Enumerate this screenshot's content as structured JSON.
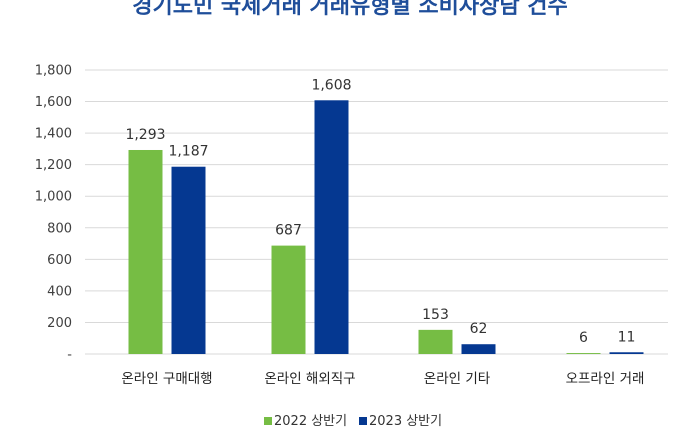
{
  "chart_data": {
    "type": "bar",
    "title": "경기도민 국제거래 거래유형별 소비자상담 건수",
    "categories": [
      "온라인 구매대행",
      "온라인 해외직구",
      "온라인 기타",
      "오프라인 거래"
    ],
    "series": [
      {
        "name": "2022 상반기",
        "values": [
          1293,
          687,
          153,
          6
        ],
        "labels": [
          "1,293",
          "687",
          "153",
          "6"
        ]
      },
      {
        "name": "2023 상반기",
        "values": [
          1187,
          1608,
          62,
          11
        ],
        "labels": [
          "1,187",
          "1,608",
          "62",
          "11"
        ]
      }
    ],
    "ylim": [
      0,
      1800
    ],
    "yticks": [
      0,
      200,
      400,
      600,
      800,
      1000,
      1200,
      1400,
      1600,
      1800
    ],
    "yticklabels": [
      "-",
      "200",
      "400",
      "600",
      "800",
      "1,000",
      "1,200",
      "1,400",
      "1,600",
      "1,800"
    ],
    "grid": true,
    "legend": "bottom",
    "colors": {
      "s2022": "#76bd44",
      "s2023": "#053891",
      "grid": "#d9d9d9"
    }
  }
}
